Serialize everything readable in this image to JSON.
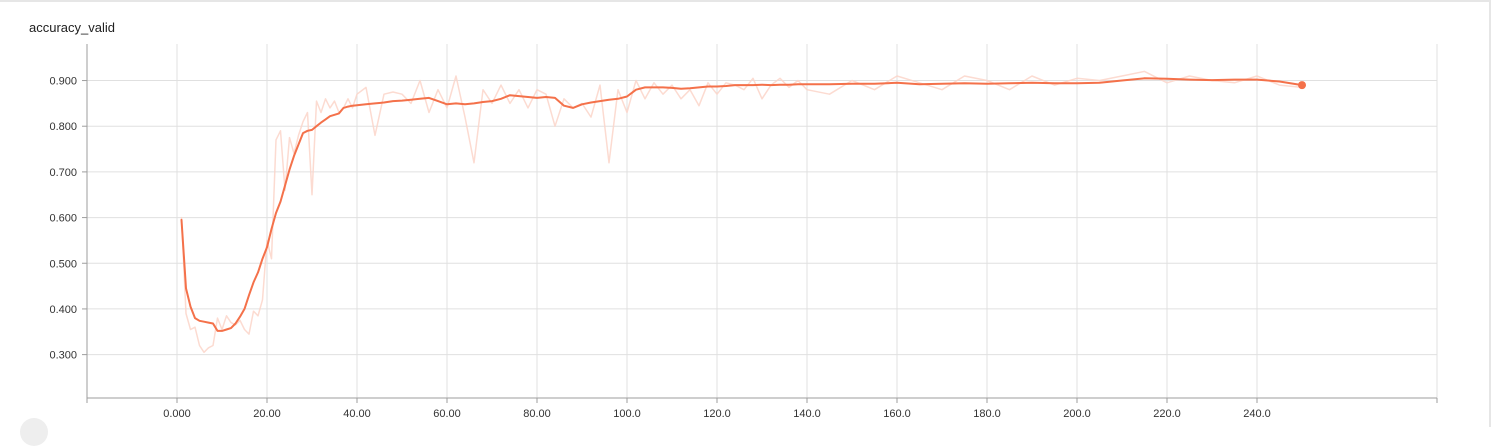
{
  "card": {
    "title": "accuracy_valid"
  },
  "chart_data": {
    "type": "line",
    "title": "accuracy_valid",
    "xlabel": "",
    "ylabel": "",
    "xlim": [
      -20,
      280
    ],
    "ylim": [
      0.205,
      0.98
    ],
    "x_ticks": [
      0,
      20,
      40,
      60,
      80,
      100,
      120,
      140,
      160,
      180,
      200,
      220,
      240
    ],
    "x_tick_labels": [
      "0.000",
      "20.00",
      "40.00",
      "60.00",
      "80.00",
      "100.0",
      "120.0",
      "140.0",
      "160.0",
      "180.0",
      "200.0",
      "220.0",
      "240.0"
    ],
    "y_ticks": [
      0.3,
      0.4,
      0.5,
      0.6,
      0.7,
      0.8,
      0.9
    ],
    "y_tick_labels": [
      "0.300",
      "0.400",
      "0.500",
      "0.600",
      "0.700",
      "0.800",
      "0.900"
    ],
    "grid": true,
    "colors": {
      "smoothed": "#f4714a",
      "raw": "#fbd5c9",
      "grid": "#e0e0e0",
      "axis": "#9e9e9e"
    },
    "series": [
      {
        "kind": "raw",
        "x": [
          1,
          2,
          3,
          4,
          5,
          6,
          7,
          8,
          9,
          10,
          11,
          12,
          13,
          14,
          15,
          16,
          17,
          18,
          19,
          20,
          21,
          22,
          23,
          24,
          25,
          26,
          27,
          28,
          29,
          30,
          31,
          32,
          33,
          34,
          35,
          36,
          37,
          38,
          39,
          40,
          42,
          44,
          46,
          48,
          50,
          52,
          54,
          56,
          58,
          60,
          62,
          64,
          66,
          68,
          70,
          72,
          74,
          76,
          78,
          80,
          82,
          84,
          86,
          88,
          90,
          92,
          94,
          96,
          98,
          100,
          102,
          104,
          106,
          108,
          110,
          112,
          114,
          116,
          118,
          120,
          122,
          124,
          126,
          128,
          130,
          132,
          134,
          136,
          138,
          140,
          145,
          150,
          155,
          160,
          165,
          170,
          175,
          180,
          185,
          190,
          195,
          200,
          205,
          210,
          215,
          220,
          225,
          230,
          235,
          240,
          245,
          250
        ],
        "y": [
          0.6,
          0.39,
          0.355,
          0.36,
          0.32,
          0.305,
          0.315,
          0.32,
          0.38,
          0.355,
          0.385,
          0.37,
          0.365,
          0.375,
          0.355,
          0.345,
          0.395,
          0.385,
          0.42,
          0.55,
          0.51,
          0.77,
          0.79,
          0.66,
          0.775,
          0.74,
          0.78,
          0.81,
          0.83,
          0.65,
          0.855,
          0.83,
          0.86,
          0.84,
          0.855,
          0.83,
          0.84,
          0.86,
          0.84,
          0.87,
          0.885,
          0.78,
          0.87,
          0.875,
          0.87,
          0.85,
          0.9,
          0.83,
          0.88,
          0.84,
          0.91,
          0.82,
          0.72,
          0.88,
          0.85,
          0.89,
          0.85,
          0.88,
          0.84,
          0.88,
          0.87,
          0.8,
          0.86,
          0.84,
          0.85,
          0.82,
          0.89,
          0.72,
          0.88,
          0.83,
          0.9,
          0.86,
          0.895,
          0.87,
          0.89,
          0.86,
          0.88,
          0.845,
          0.895,
          0.87,
          0.895,
          0.89,
          0.88,
          0.905,
          0.86,
          0.89,
          0.905,
          0.885,
          0.9,
          0.88,
          0.87,
          0.9,
          0.88,
          0.91,
          0.895,
          0.88,
          0.91,
          0.9,
          0.88,
          0.91,
          0.89,
          0.905,
          0.9,
          0.91,
          0.92,
          0.895,
          0.91,
          0.9,
          0.895,
          0.91,
          0.89,
          0.885
        ]
      },
      {
        "kind": "smoothed",
        "x": [
          1,
          2,
          3,
          4,
          5,
          6,
          7,
          8,
          9,
          10,
          11,
          12,
          13,
          14,
          15,
          16,
          17,
          18,
          19,
          20,
          21,
          22,
          23,
          24,
          25,
          26,
          27,
          28,
          29,
          30,
          31,
          32,
          33,
          34,
          35,
          36,
          37,
          38,
          39,
          40,
          42,
          44,
          46,
          48,
          50,
          52,
          54,
          56,
          58,
          60,
          62,
          64,
          66,
          68,
          70,
          72,
          74,
          76,
          78,
          80,
          82,
          84,
          86,
          88,
          90,
          92,
          94,
          96,
          98,
          100,
          102,
          104,
          106,
          108,
          110,
          112,
          114,
          116,
          118,
          120,
          122,
          124,
          126,
          128,
          130,
          132,
          134,
          136,
          138,
          140,
          145,
          150,
          155,
          160,
          165,
          170,
          175,
          180,
          185,
          190,
          195,
          200,
          205,
          210,
          215,
          220,
          225,
          230,
          235,
          240,
          245,
          250
        ],
        "y": [
          0.595,
          0.445,
          0.405,
          0.38,
          0.374,
          0.372,
          0.37,
          0.368,
          0.352,
          0.352,
          0.355,
          0.358,
          0.368,
          0.383,
          0.4,
          0.43,
          0.458,
          0.48,
          0.51,
          0.535,
          0.575,
          0.61,
          0.635,
          0.67,
          0.705,
          0.735,
          0.76,
          0.785,
          0.79,
          0.792,
          0.8,
          0.808,
          0.815,
          0.822,
          0.825,
          0.828,
          0.84,
          0.843,
          0.845,
          0.846,
          0.848,
          0.85,
          0.852,
          0.855,
          0.856,
          0.858,
          0.86,
          0.862,
          0.855,
          0.848,
          0.85,
          0.848,
          0.85,
          0.853,
          0.855,
          0.86,
          0.868,
          0.866,
          0.864,
          0.862,
          0.864,
          0.862,
          0.845,
          0.84,
          0.848,
          0.852,
          0.855,
          0.858,
          0.86,
          0.865,
          0.88,
          0.885,
          0.885,
          0.885,
          0.884,
          0.882,
          0.883,
          0.885,
          0.887,
          0.887,
          0.888,
          0.89,
          0.89,
          0.89,
          0.891,
          0.89,
          0.891,
          0.891,
          0.892,
          0.892,
          0.892,
          0.893,
          0.893,
          0.895,
          0.892,
          0.893,
          0.894,
          0.893,
          0.894,
          0.895,
          0.894,
          0.894,
          0.895,
          0.9,
          0.905,
          0.904,
          0.902,
          0.901,
          0.902,
          0.902,
          0.898,
          0.89
        ]
      }
    ]
  }
}
